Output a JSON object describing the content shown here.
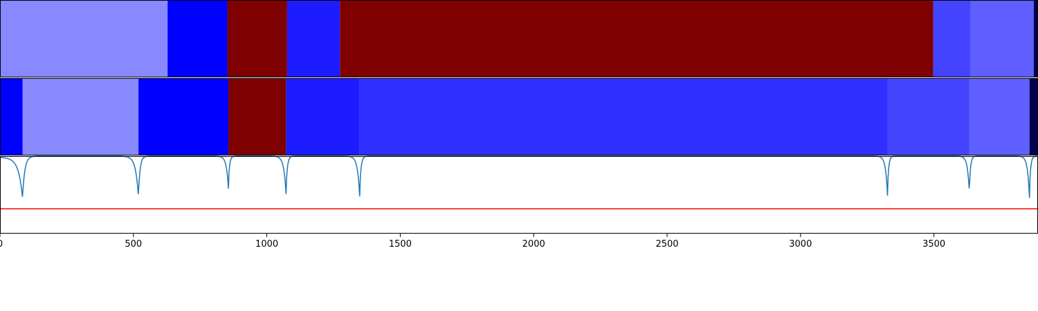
{
  "chart_data": [
    {
      "type": "heatmap",
      "xlim": [
        0,
        3890
      ],
      "segments": [
        {
          "start": 0,
          "end": 628,
          "color": "#8888ff"
        },
        {
          "start": 628,
          "end": 852,
          "color": "#0000ff"
        },
        {
          "start": 852,
          "end": 1076,
          "color": "#7f0000"
        },
        {
          "start": 1076,
          "end": 1274,
          "color": "#1c1cff"
        },
        {
          "start": 1274,
          "end": 3497,
          "color": "#7f0000"
        },
        {
          "start": 3497,
          "end": 3638,
          "color": "#4444ff"
        },
        {
          "start": 3638,
          "end": 3874,
          "color": "#5f5fff"
        },
        {
          "start": 3874,
          "end": 3890,
          "color": "#00004f"
        }
      ]
    },
    {
      "type": "heatmap",
      "xlim": [
        0,
        3890
      ],
      "segments": [
        {
          "start": 0,
          "end": 85,
          "color": "#0000ff"
        },
        {
          "start": 85,
          "end": 519,
          "color": "#8888ff"
        },
        {
          "start": 519,
          "end": 856,
          "color": "#0000ff"
        },
        {
          "start": 856,
          "end": 1072,
          "color": "#7f0000"
        },
        {
          "start": 1072,
          "end": 1348,
          "color": "#1c1cff"
        },
        {
          "start": 1348,
          "end": 3326,
          "color": "#2f2fff"
        },
        {
          "start": 3326,
          "end": 3633,
          "color": "#4444ff"
        },
        {
          "start": 3633,
          "end": 3858,
          "color": "#5f5fff"
        },
        {
          "start": 3858,
          "end": 3890,
          "color": "#00004f"
        }
      ]
    },
    {
      "type": "line",
      "xlim": [
        0,
        3890
      ],
      "ylim": [
        -1.0,
        0.0
      ],
      "xticks": [
        0,
        500,
        1000,
        1500,
        2000,
        2500,
        3000,
        3500
      ],
      "threshold": {
        "value": -0.68,
        "color": "#ff0000"
      },
      "line_color": "#1f77b4",
      "dips": [
        {
          "center": 85,
          "depth": 0.5,
          "width": 14,
          "lead": 55
        },
        {
          "center": 519,
          "depth": 0.48,
          "width": 10,
          "lead": 15
        },
        {
          "center": 856,
          "depth": 0.36,
          "width": 7,
          "lead": 10
        },
        {
          "center": 1072,
          "depth": 0.43,
          "width": 8,
          "lead": 10
        },
        {
          "center": 1348,
          "depth": 0.46,
          "width": 8,
          "lead": 10
        },
        {
          "center": 3326,
          "depth": 0.45,
          "width": 7,
          "lead": 8
        },
        {
          "center": 3633,
          "depth": 0.42,
          "width": 7,
          "lead": 8
        },
        {
          "center": 3858,
          "depth": 0.48,
          "width": 7,
          "lead": 8
        }
      ]
    }
  ]
}
